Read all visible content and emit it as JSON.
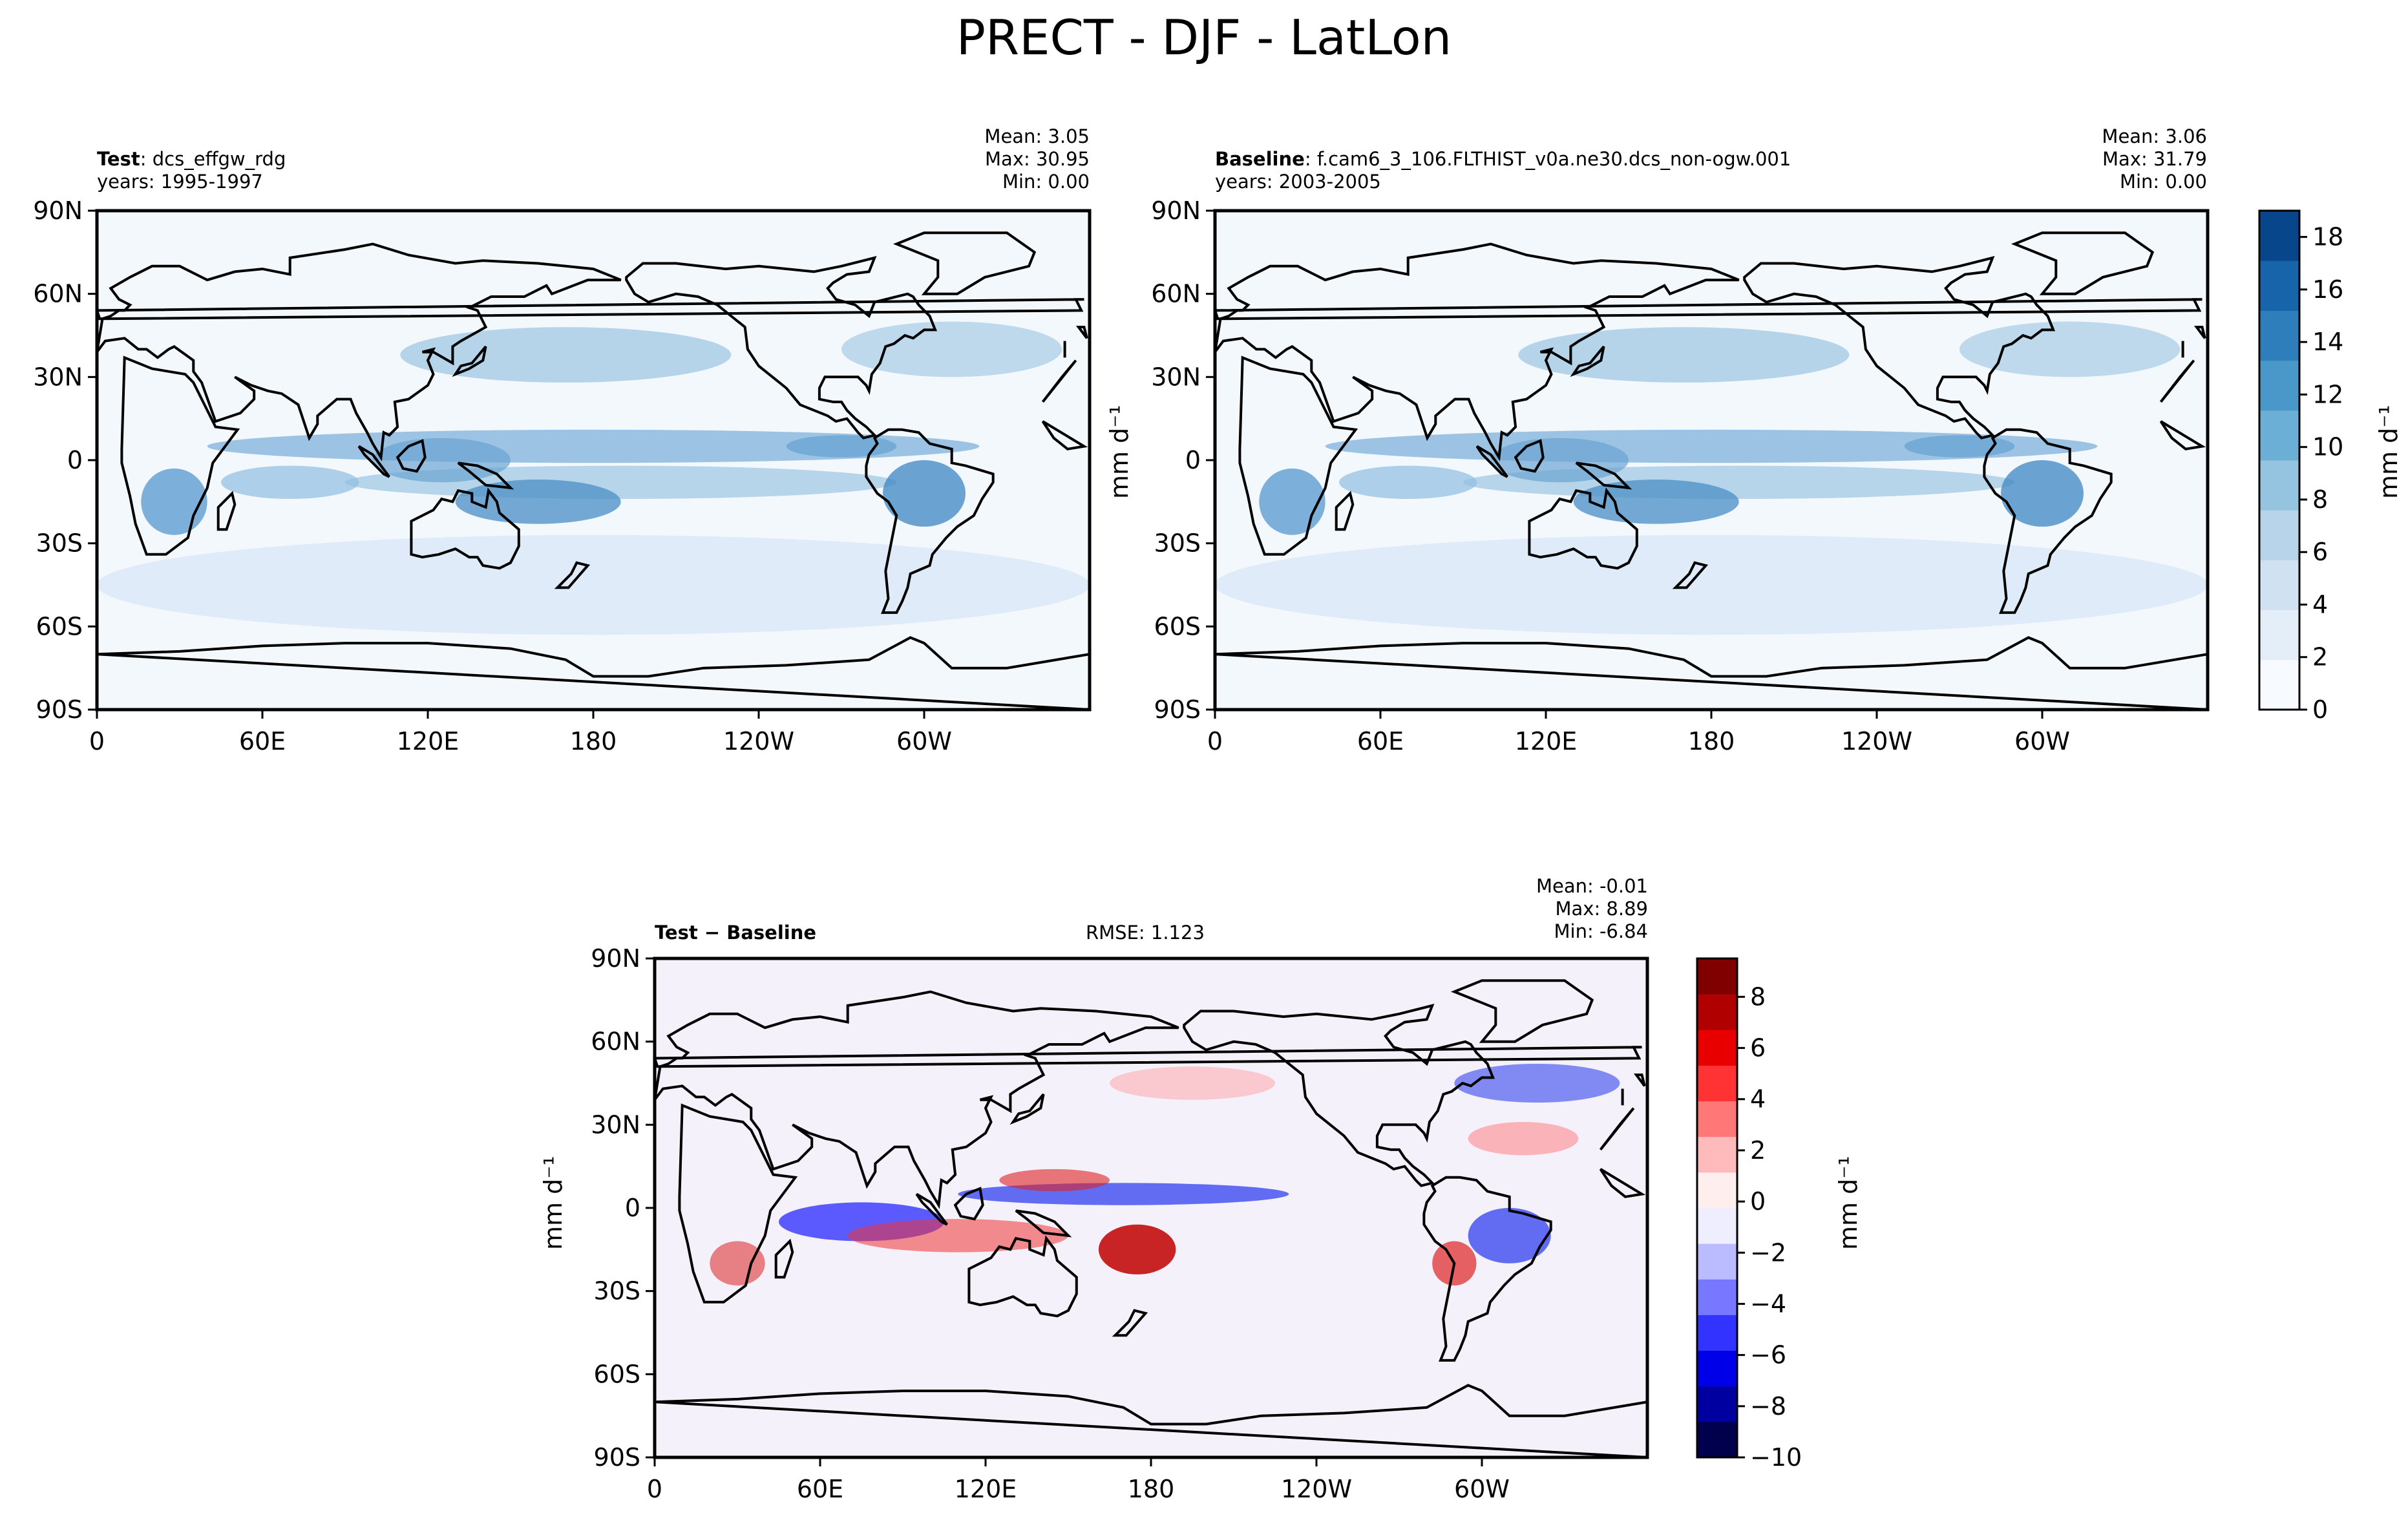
{
  "figure": {
    "title": "PRECT - DJF - LatLon"
  },
  "chart_data": [
    {
      "type": "heatmap",
      "panel": "test",
      "label": "Test",
      "case": "dcs_effgw_rdg",
      "years": "years: 1995-1997",
      "stats": {
        "mean": "Mean:  3.05",
        "max": "Max: 30.95",
        "min": "Min:  0.00"
      },
      "x_ticks": [
        "0",
        "60E",
        "120E",
        "180",
        "120W",
        "60W"
      ],
      "y_ticks": [
        "90N",
        "60N",
        "30N",
        "0",
        "30S",
        "60S",
        "90S"
      ],
      "xlim": [
        0,
        360
      ],
      "ylim": [
        -90,
        90
      ],
      "colormap": "Blues",
      "note": "Global DJF precipitation map with ITCZ bands, storm tracks, and maxima over western Pacific, South America and southern Africa"
    },
    {
      "type": "heatmap",
      "panel": "baseline",
      "label": "Baseline",
      "case": "f.cam6_3_106.FLTHIST_v0a.ne30.dcs_non-ogw.001",
      "years": "years: 2003-2005",
      "stats": {
        "mean": "Mean:  3.06",
        "max": "Max: 31.79",
        "min": "Min:  0.00"
      },
      "x_ticks": [
        "0",
        "60E",
        "120E",
        "180",
        "120W",
        "60W"
      ],
      "y_ticks": [
        "90N",
        "60N",
        "30N",
        "0",
        "30S",
        "60S",
        "90S"
      ],
      "xlim": [
        0,
        360
      ],
      "ylim": [
        -90,
        90
      ],
      "colormap": "Blues",
      "colorbar": {
        "label": "mm d⁻¹",
        "ticks": [
          "0",
          "2",
          "4",
          "6",
          "8",
          "10",
          "12",
          "14",
          "16",
          "18"
        ],
        "range": [
          0,
          19
        ]
      }
    },
    {
      "type": "heatmap",
      "panel": "difference",
      "label": "Test − Baseline",
      "rmse": "RMSE: 1.123",
      "stats": {
        "mean": "Mean: -0.01",
        "max": "Max:  8.89",
        "min": "Min: -6.84"
      },
      "x_ticks": [
        "0",
        "60E",
        "120E",
        "180",
        "120W",
        "60W"
      ],
      "y_ticks": [
        "90N",
        "60N",
        "30N",
        "0",
        "30S",
        "60S",
        "90S"
      ],
      "xlim": [
        0,
        360
      ],
      "ylim": [
        -90,
        90
      ],
      "colormap": "seismic",
      "ylabel": "mm d⁻¹",
      "colorbar": {
        "label": "mm d⁻¹",
        "ticks": [
          "8",
          "6",
          "4",
          "2",
          "0",
          "−2",
          "−4",
          "−6",
          "−8",
          "−10"
        ],
        "range": [
          -10,
          9.5
        ]
      }
    }
  ],
  "labels": {
    "test_bold": "Test",
    "baseline_bold": "Baseline",
    "diff_bold": "Test − Baseline",
    "colon_sep": ": ",
    "unit": "mm d⁻¹"
  }
}
